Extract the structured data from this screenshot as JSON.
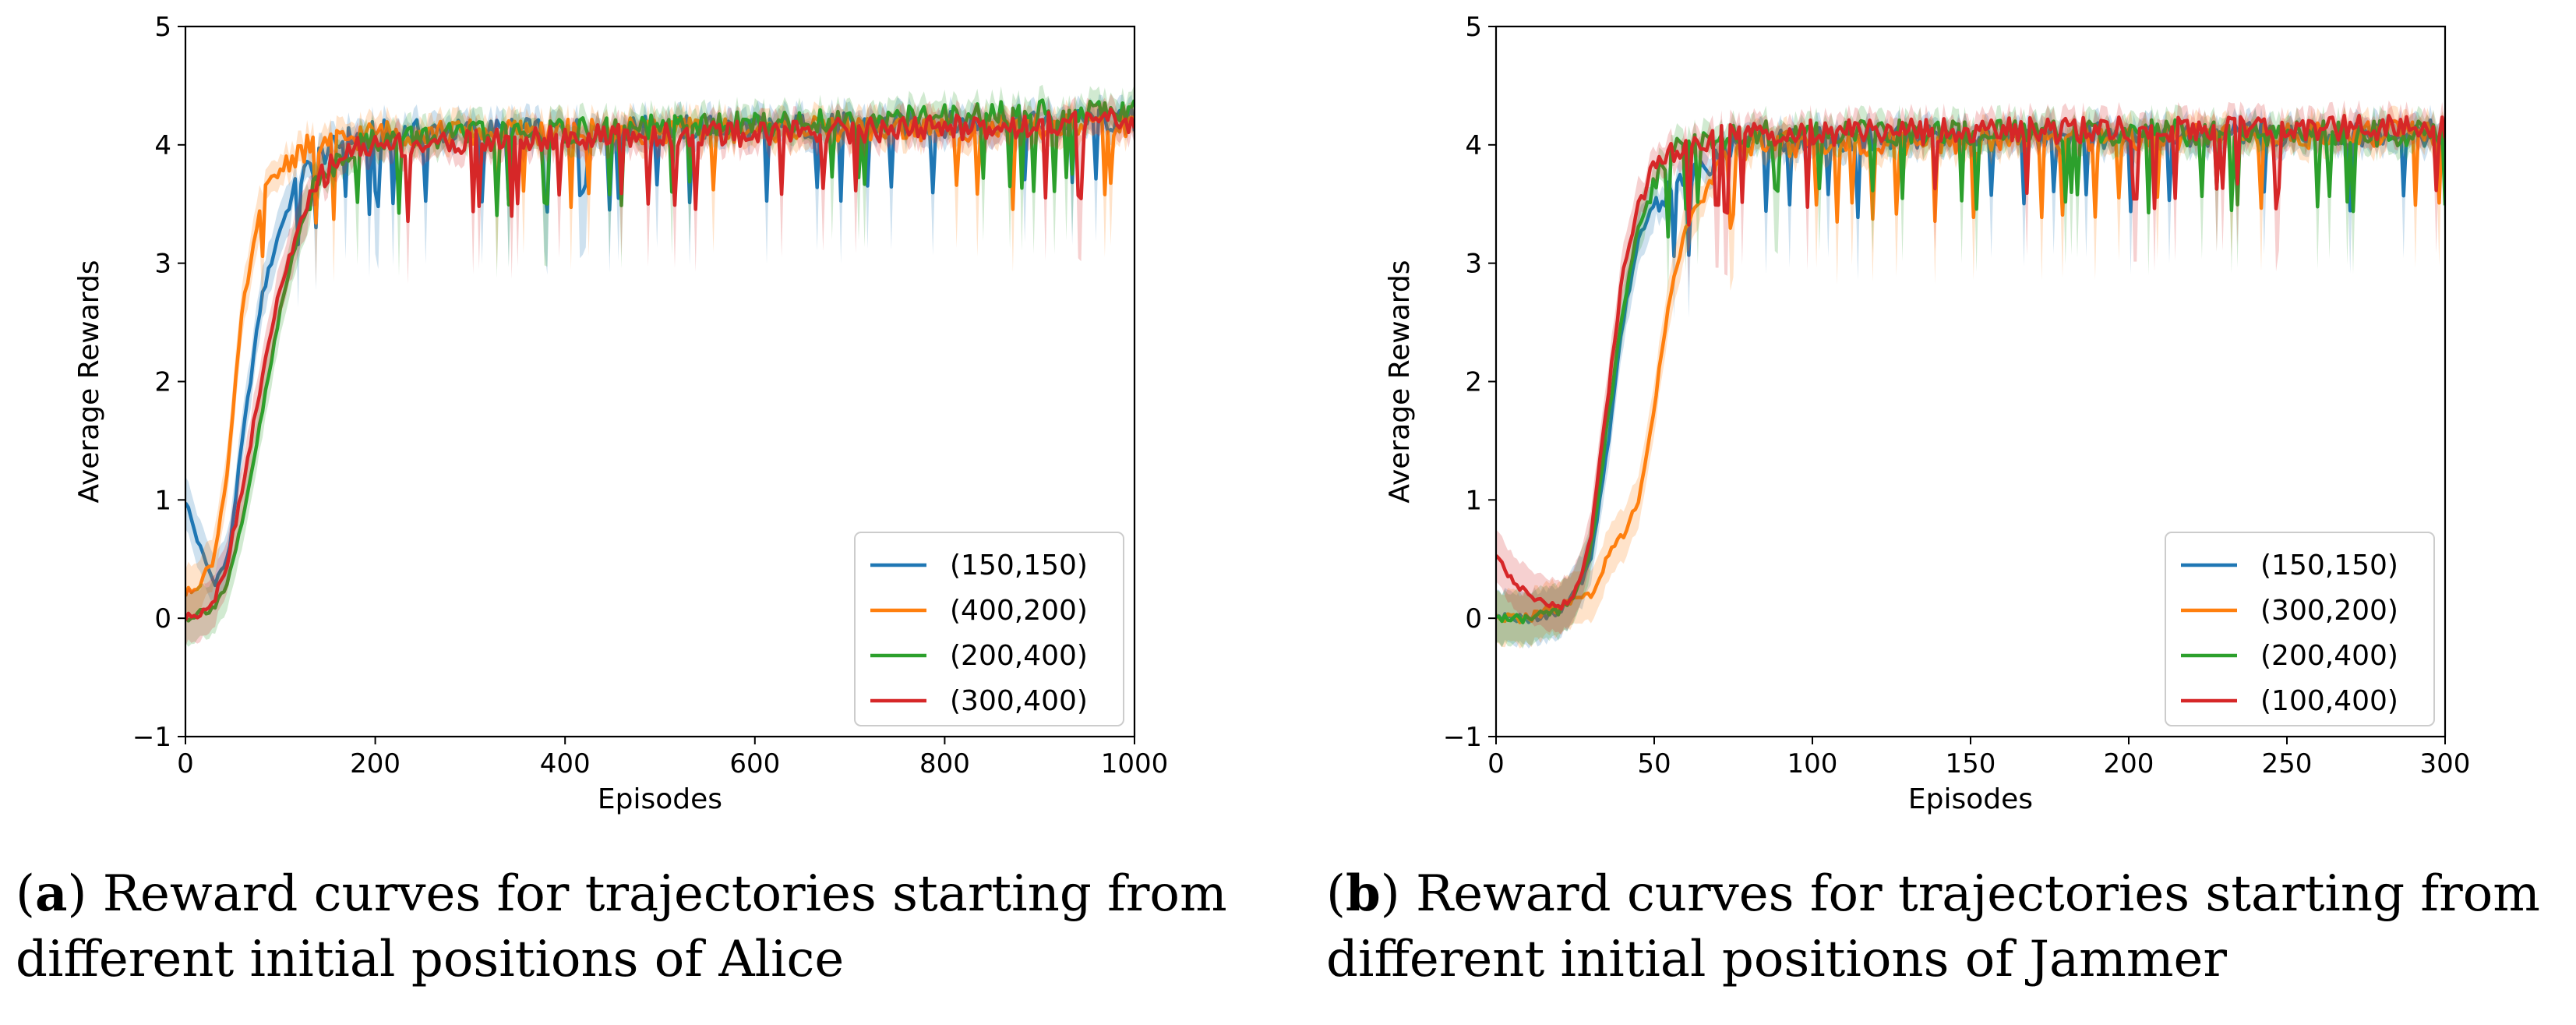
{
  "colors": {
    "blue": "#1f77b4",
    "orange": "#ff7f0e",
    "green": "#2ca02c",
    "red": "#d62728"
  },
  "chart_data": [
    {
      "type": "line",
      "title": "",
      "xlabel": "Episodes",
      "ylabel": "Average Rewards",
      "xlim": [
        0,
        1000
      ],
      "ylim": [
        -1,
        5
      ],
      "xticks": [
        "0",
        "200",
        "400",
        "600",
        "800",
        "1000"
      ],
      "yticks": [
        "−1",
        "0",
        "1",
        "2",
        "3",
        "4",
        "5"
      ],
      "legend_position": "lower-right",
      "series": [
        {
          "name": "(150,150)",
          "color": "#1f77b4",
          "x": [
            0,
            15,
            30,
            45,
            60,
            80,
            100,
            120,
            140,
            170,
            200,
            1000
          ],
          "y": [
            1.0,
            0.6,
            0.3,
            0.5,
            1.5,
            2.7,
            3.3,
            3.7,
            3.9,
            4.05,
            4.1,
            4.2
          ]
        },
        {
          "name": "(400,200)",
          "color": "#ff7f0e",
          "x": [
            0,
            15,
            30,
            45,
            60,
            80,
            100,
            120,
            140,
            170,
            200,
            1000
          ],
          "y": [
            0.2,
            0.3,
            0.5,
            1.3,
            2.6,
            3.5,
            3.8,
            3.95,
            4.0,
            4.05,
            4.1,
            4.15
          ]
        },
        {
          "name": "(200,400)",
          "color": "#2ca02c",
          "x": [
            0,
            15,
            30,
            45,
            60,
            80,
            100,
            120,
            140,
            170,
            200,
            1000
          ],
          "y": [
            0.0,
            0.05,
            0.1,
            0.3,
            0.8,
            1.7,
            2.6,
            3.3,
            3.7,
            3.95,
            4.05,
            4.3
          ]
        },
        {
          "name": "(300,400)",
          "color": "#d62728",
          "x": [
            0,
            15,
            30,
            45,
            60,
            80,
            100,
            120,
            140,
            170,
            200,
            1000
          ],
          "y": [
            0.0,
            0.05,
            0.15,
            0.5,
            1.1,
            2.0,
            2.8,
            3.3,
            3.7,
            3.95,
            4.0,
            4.2
          ]
        }
      ]
    },
    {
      "type": "line",
      "title": "",
      "xlabel": "Episodes",
      "ylabel": "Average Rewards",
      "xlim": [
        0,
        300
      ],
      "ylim": [
        -1,
        5
      ],
      "xticks": [
        "0",
        "50",
        "100",
        "150",
        "200",
        "250",
        "300"
      ],
      "yticks": [
        "−1",
        "0",
        "1",
        "2",
        "3",
        "4",
        "5"
      ],
      "legend_position": "lower-right",
      "series": [
        {
          "name": "(150,150)",
          "color": "#1f77b4",
          "x": [
            0,
            10,
            20,
            25,
            30,
            35,
            40,
            45,
            50,
            55,
            60,
            70,
            80,
            300
          ],
          "y": [
            0.0,
            0.0,
            0.05,
            0.2,
            0.5,
            1.4,
            2.5,
            3.2,
            3.5,
            3.6,
            3.7,
            3.9,
            4.05,
            4.1
          ]
        },
        {
          "name": "(300,200)",
          "color": "#ff7f0e",
          "x": [
            0,
            10,
            20,
            25,
            30,
            35,
            40,
            45,
            50,
            55,
            60,
            70,
            80,
            300
          ],
          "y": [
            0.0,
            0.0,
            0.1,
            0.15,
            0.2,
            0.5,
            0.7,
            1.0,
            1.8,
            2.7,
            3.3,
            3.8,
            4.0,
            4.1
          ]
        },
        {
          "name": "(200,400)",
          "color": "#2ca02c",
          "x": [
            0,
            10,
            20,
            25,
            30,
            35,
            40,
            45,
            50,
            55,
            60,
            70,
            80,
            300
          ],
          "y": [
            0.0,
            0.0,
            0.05,
            0.2,
            0.6,
            1.6,
            2.6,
            3.3,
            3.7,
            3.9,
            4.0,
            4.05,
            4.1,
            4.1
          ]
        },
        {
          "name": "(100,400)",
          "color": "#d62728",
          "x": [
            0,
            10,
            20,
            25,
            30,
            35,
            40,
            45,
            50,
            55,
            60,
            70,
            80,
            300
          ],
          "y": [
            0.5,
            0.2,
            0.1,
            0.2,
            0.7,
            1.8,
            2.9,
            3.5,
            3.8,
            3.9,
            3.95,
            4.05,
            4.1,
            4.15
          ]
        }
      ]
    }
  ],
  "captions": [
    {
      "label": "a",
      "line1": " Reward curves for trajectories starting from",
      "line2": "different initial positions of Alice"
    },
    {
      "label": "b",
      "line1": " Reward curves for trajectories starting from",
      "line2": "different initial positions of Jammer"
    }
  ]
}
